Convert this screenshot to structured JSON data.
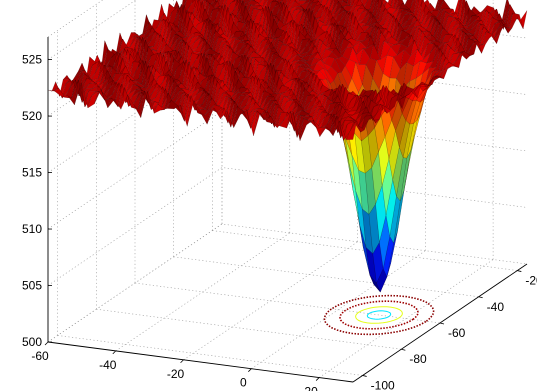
{
  "chart_data": {
    "type": "surface",
    "title": "",
    "xlabel": "",
    "ylabel": "",
    "zlabel": "",
    "grid": true,
    "legend": "none",
    "colormap": "jet",
    "projected_contours": true,
    "x_ticks": [
      -60,
      -40,
      -20,
      0,
      20
    ],
    "y_ticks": [
      -20,
      -40,
      -60,
      -80,
      -100
    ],
    "z_ticks": [
      500,
      505,
      510,
      515,
      520,
      525
    ],
    "xlim": [
      -60,
      30
    ],
    "ylim": [
      -105,
      -15
    ],
    "zlim": [
      500,
      527
    ],
    "surface": {
      "plateau_level": 522,
      "minimum": {
        "x": 12,
        "y": -60,
        "z": 502
      },
      "basin_sigma": 6,
      "ridge_noise_amplitude": 1.0
    }
  }
}
